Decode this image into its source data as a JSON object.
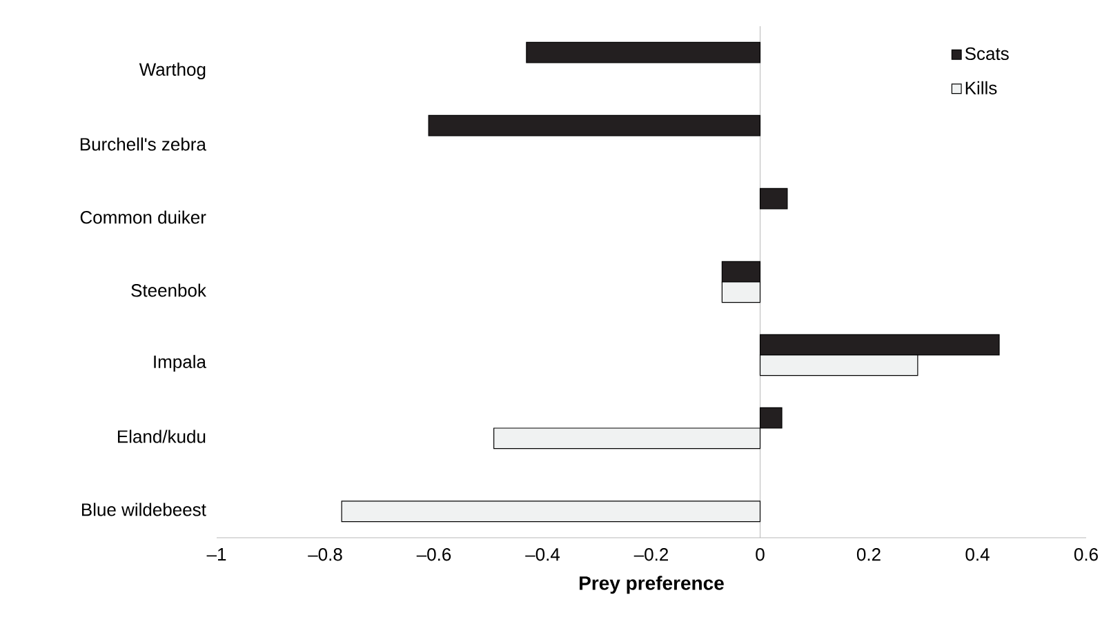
{
  "chart_data": {
    "type": "bar",
    "orientation": "horizontal",
    "xlabel": "Prey preference",
    "categories": [
      "Warthog",
      "Burchell's zebra",
      "Common duiker",
      "Steenbok",
      "Impala",
      "Eland/kudu",
      "Blue wildebeest"
    ],
    "series": [
      {
        "name": "Scats",
        "color": "#231f20",
        "values": [
          -0.43,
          -0.61,
          0.05,
          -0.07,
          0.44,
          0.04,
          null
        ]
      },
      {
        "name": "Kills",
        "color": "#f0f2f2",
        "values": [
          null,
          null,
          null,
          -0.07,
          0.29,
          -0.49,
          -0.77
        ]
      }
    ],
    "xlim": [
      -1,
      0.6
    ],
    "xticks": [
      {
        "value": -1,
        "label": "–1"
      },
      {
        "value": -0.8,
        "label": "–0.8"
      },
      {
        "value": -0.6,
        "label": "–0.6"
      },
      {
        "value": -0.4,
        "label": "–0.4"
      },
      {
        "value": -0.2,
        "label": "–0.2"
      },
      0,
      0.2,
      0.4,
      0.6
    ],
    "ref_lines": [
      {
        "axis": "x",
        "value": 0,
        "color": "#a6a6a6"
      }
    ],
    "legend": "top right"
  }
}
